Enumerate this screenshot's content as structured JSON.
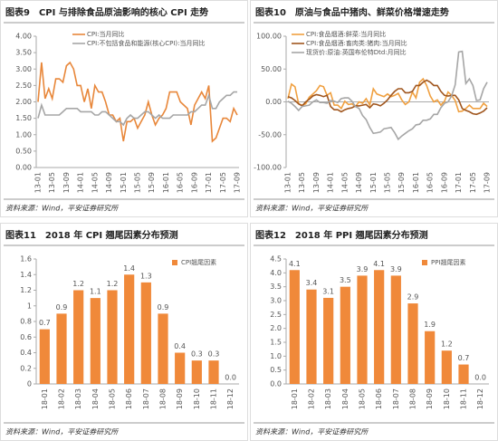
{
  "chart_data": [
    {
      "type": "line",
      "title": "图表9　CPI 与排除食品原油影响的核心 CPI 走势",
      "source": "资料来源：Wind，平安证券研究所",
      "legend": "top",
      "categories": [
        "13-01",
        null,
        null,
        null,
        "13-05",
        null,
        null,
        null,
        "13-09",
        null,
        null,
        null,
        "14-01",
        null,
        null,
        null,
        "14-05",
        null,
        null,
        null,
        "14-09",
        null,
        null,
        null,
        "15-01",
        null,
        null,
        null,
        "15-05",
        null,
        null,
        null,
        "15-09",
        null,
        null,
        null,
        "16-01",
        null,
        null,
        null,
        "16-05",
        null,
        null,
        null,
        "16-09",
        null,
        null,
        null,
        "17-01",
        null,
        null,
        null,
        "17-05",
        null,
        null,
        null,
        "17-09"
      ],
      "series": [
        {
          "name": "CPI:当月同比",
          "color": "#e8873a",
          "values": [
            2.0,
            3.2,
            2.1,
            2.4,
            2.1,
            2.7,
            2.7,
            2.6,
            3.1,
            3.2,
            3.0,
            2.5,
            2.5,
            2.0,
            2.4,
            1.8,
            2.5,
            2.3,
            2.3,
            2.0,
            1.6,
            1.6,
            1.4,
            1.5,
            0.8,
            1.4,
            1.4,
            1.5,
            1.2,
            1.4,
            1.6,
            2.0,
            1.6,
            1.3,
            1.5,
            1.6,
            1.8,
            2.3,
            2.3,
            2.3,
            2.0,
            1.9,
            1.8,
            1.3,
            1.9,
            2.1,
            2.3,
            2.1,
            2.5,
            0.8,
            0.9,
            1.2,
            1.5,
            1.5,
            1.4,
            1.8,
            1.6
          ]
        },
        {
          "name": "CPI:不包括食品和能源(核心CPI):当月同比",
          "color": "#a6a6a6",
          "values": [
            1.5,
            1.9,
            1.6,
            1.6,
            1.6,
            1.6,
            1.6,
            1.7,
            1.8,
            1.8,
            1.8,
            1.8,
            1.7,
            1.7,
            1.7,
            1.7,
            1.6,
            1.6,
            1.7,
            1.7,
            1.6,
            1.5,
            1.4,
            1.4,
            1.3,
            1.5,
            1.6,
            1.5,
            1.5,
            1.6,
            1.7,
            1.7,
            1.6,
            1.5,
            1.6,
            1.5,
            1.5,
            1.5,
            1.6,
            1.6,
            1.6,
            1.6,
            1.6,
            1.7,
            1.7,
            1.8,
            1.9,
            1.9,
            2.2,
            1.8,
            1.8,
            2.0,
            2.1,
            2.2,
            2.2,
            2.3,
            2.3
          ]
        }
      ],
      "ylim": [
        0,
        4
      ],
      "yticks": [
        {
          "value": 0,
          "label": "0.00"
        },
        {
          "value": 0.5,
          "label": "0.50"
        },
        {
          "value": 1,
          "label": "1.00"
        },
        {
          "value": 1.5,
          "label": "1.50"
        },
        {
          "value": 2,
          "label": "2.00"
        },
        {
          "value": 2.5,
          "label": "2.50"
        },
        {
          "value": 3,
          "label": "3.00"
        },
        {
          "value": 3.5,
          "label": "3.50"
        },
        {
          "value": 4,
          "label": "4.00"
        }
      ]
    },
    {
      "type": "line",
      "title": "图表10　原油与食品中猪肉、鲜菜价格增速走势",
      "source": "资料来源：Wind，平安证券研究所",
      "legend": "top-left",
      "categories": [
        "13-01",
        null,
        null,
        null,
        "13-05",
        null,
        null,
        null,
        "13-09",
        null,
        null,
        null,
        "14-01",
        null,
        null,
        null,
        "14-05",
        null,
        null,
        null,
        "14-09",
        null,
        null,
        null,
        "15-01",
        null,
        null,
        null,
        "15-05",
        null,
        null,
        null,
        "15-09",
        null,
        null,
        null,
        "16-01",
        null,
        null,
        null,
        "16-05",
        null,
        null,
        null,
        "16-09",
        null,
        null,
        null,
        "17-01",
        null,
        null,
        null,
        "17-05",
        null,
        null,
        null,
        "17-09"
      ],
      "series": [
        {
          "name": "CPI:食品烟酒:鲜菜:当月同比",
          "color": "#f0a040",
          "values": [
            5,
            27,
            23,
            -3,
            -5,
            -3,
            7,
            12,
            17,
            25,
            23,
            10,
            14,
            -5,
            -5,
            -10,
            1,
            -4,
            -3,
            -7,
            0,
            -2,
            5,
            -5,
            20,
            12,
            10,
            8,
            12,
            8,
            10,
            13,
            3,
            -4,
            0,
            15,
            6,
            30,
            35,
            25,
            9,
            0,
            3,
            -5,
            1,
            15,
            10,
            2,
            -15,
            -14,
            -10,
            -5,
            -10,
            -10,
            -10,
            -2,
            -7
          ]
        },
        {
          "name": "CPI:食品烟酒:畜肉类:猪肉:当月同比",
          "color": "#a0561e",
          "values": [
            8,
            6,
            2,
            -3,
            -6,
            0,
            4,
            9,
            11,
            10,
            8,
            10,
            -7,
            -12,
            -12,
            -15,
            -12,
            -10,
            -9,
            -6,
            -6,
            -5,
            -4,
            -9,
            -3,
            -4,
            -6,
            -2,
            3,
            10,
            16,
            20,
            20,
            14,
            14,
            16,
            25,
            25,
            30,
            33,
            30,
            25,
            25,
            16,
            10,
            9,
            10,
            10,
            3,
            -10,
            -13,
            -15,
            -18,
            -19,
            -17,
            -14,
            -9
          ]
        },
        {
          "name": "现货价:原油:英国布伦特Dtd:月同比",
          "color": "#a6a6a6",
          "values": [
            1,
            -2,
            -7,
            -13,
            -7,
            -6,
            -5,
            0,
            3,
            -1,
            -1,
            -2,
            2,
            1,
            -1,
            5,
            6,
            6,
            1,
            -7,
            -10,
            -21,
            -27,
            -39,
            -48,
            -47,
            -46,
            -41,
            -40,
            -39,
            -47,
            -57,
            -52,
            -48,
            -44,
            -41,
            -35,
            -34,
            -28,
            -28,
            -26,
            -19,
            -19,
            -9,
            -2,
            0,
            9,
            26,
            76,
            77,
            28,
            35,
            25,
            2,
            3,
            20,
            30
          ]
        }
      ],
      "ylim": [
        -100,
        100
      ],
      "yticks": [
        {
          "value": -100,
          "label": "-100.00"
        },
        {
          "value": -50,
          "label": "-50.00"
        },
        {
          "value": 0,
          "label": "0.00"
        },
        {
          "value": 50,
          "label": "50.00"
        },
        {
          "value": 100,
          "label": "100.00"
        }
      ]
    },
    {
      "type": "bar",
      "title": "图表11　2018 年 CPI 翘尾因素分布预测",
      "source": "资料来源：Wind，平安证券研究所",
      "legend": "top-right",
      "categories": [
        "18-01",
        "18-02",
        "18-03",
        "18-04",
        "18-05",
        "18-06",
        "18-07",
        "18-08",
        "18-09",
        "18-10",
        "18-11",
        "18-12"
      ],
      "series": [
        {
          "name": "CPI翘尾因素",
          "color": "#f0893a",
          "values": [
            0.7,
            0.9,
            1.2,
            1.1,
            1.2,
            1.4,
            1.3,
            0.9,
            0.4,
            0.3,
            0.3,
            0.0
          ],
          "value_labels": [
            "0.7",
            "0.9",
            "1.2",
            "1.1",
            "1.2",
            "1.4",
            "1.3",
            "0.9",
            "0.4",
            "0.3",
            "0.3",
            "0.0"
          ]
        }
      ],
      "ylim": [
        0,
        1.6
      ],
      "yticks": [
        0,
        0.2,
        0.4,
        0.6,
        0.8,
        1,
        1.2,
        1.4,
        1.6
      ]
    },
    {
      "type": "bar",
      "title": "图表12　2018 年 PPI 翘尾因素分布预测",
      "source": "资料来源：Wind，平安证券研究所",
      "legend": "top-right",
      "categories": [
        "18-01",
        "18-02",
        "18-03",
        "18-04",
        "18-05",
        "18-06",
        "18-07",
        "18-08",
        "18-09",
        "18-10",
        "18-11",
        "18-12"
      ],
      "series": [
        {
          "name": "PPI翘尾因素",
          "color": "#f0893a",
          "values": [
            4.1,
            3.4,
            3.1,
            3.5,
            3.9,
            4.1,
            3.9,
            2.9,
            1.9,
            1.2,
            0.7,
            0.0
          ],
          "value_labels": [
            "4.1",
            "3.4",
            "3.1",
            "3.5",
            "3.9",
            "4.1",
            "3.9",
            "2.9",
            "1.9",
            "1.2",
            "0.7",
            "0.0"
          ]
        }
      ],
      "ylim": [
        0,
        4.5
      ],
      "yticks": [
        {
          "value": 0,
          "label": "0.0"
        },
        {
          "value": 0.5,
          "label": "0.5"
        },
        {
          "value": 1,
          "label": "1.0"
        },
        {
          "value": 1.5,
          "label": "1.5"
        },
        {
          "value": 2,
          "label": "2.0"
        },
        {
          "value": 2.5,
          "label": "2.5"
        },
        {
          "value": 3,
          "label": "3.0"
        },
        {
          "value": 3.5,
          "label": "3.5"
        },
        {
          "value": 4,
          "label": "4.0"
        },
        {
          "value": 4.5,
          "label": "4.5"
        }
      ]
    }
  ]
}
